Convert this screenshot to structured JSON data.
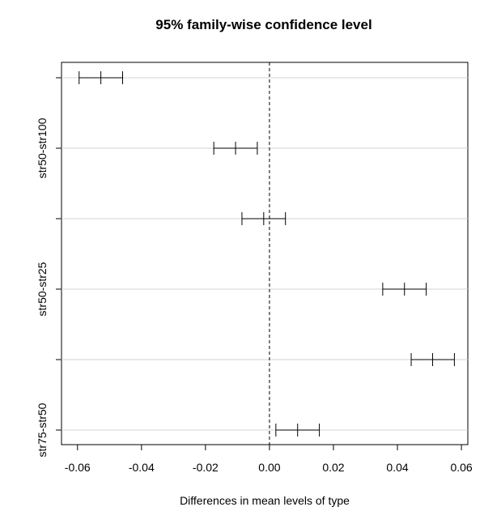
{
  "chart_data": {
    "type": "interval",
    "title": "95% family-wise confidence level",
    "xlabel": "Differences in mean levels of type",
    "ylabel": "",
    "xlim": [
      -0.065,
      0.062
    ],
    "xticks": [
      -0.06,
      -0.04,
      -0.02,
      0.0,
      0.02,
      0.04,
      0.06
    ],
    "xtick_labels": [
      "-0.06",
      "-0.04",
      "-0.02",
      "0.00",
      "0.02",
      "0.04",
      "0.06"
    ],
    "reference_line": 0,
    "grid": "horizontal",
    "comparisons": [
      {
        "label": "",
        "lwr": -0.0595,
        "diff": -0.0527,
        "upr": -0.0459
      },
      {
        "label": "str50-str100",
        "lwr": -0.0174,
        "diff": -0.0106,
        "upr": -0.0038
      },
      {
        "label": "",
        "lwr": -0.0086,
        "diff": -0.0018,
        "upr": 0.005
      },
      {
        "label": "str50-str25",
        "lwr": 0.0354,
        "diff": 0.0422,
        "upr": 0.049
      },
      {
        "label": "",
        "lwr": 0.0443,
        "diff": 0.051,
        "upr": 0.0578
      },
      {
        "label": "str75-str50",
        "lwr": 0.002,
        "diff": 0.0088,
        "upr": 0.0156
      }
    ],
    "colors": {
      "interval": "#000000",
      "grid": "#d3d3d3",
      "reference": "#000000"
    }
  }
}
